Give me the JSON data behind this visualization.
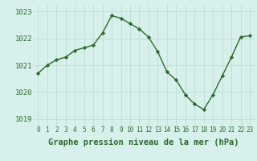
{
  "x": [
    0,
    1,
    2,
    3,
    4,
    5,
    6,
    7,
    8,
    9,
    10,
    11,
    12,
    13,
    14,
    15,
    16,
    17,
    18,
    19,
    20,
    21,
    22,
    23
  ],
  "y": [
    1020.7,
    1021.0,
    1021.2,
    1021.3,
    1021.55,
    1021.65,
    1021.75,
    1022.2,
    1022.85,
    1022.75,
    1022.55,
    1022.35,
    1022.05,
    1021.5,
    1020.75,
    1020.45,
    1019.9,
    1019.55,
    1019.35,
    1019.9,
    1020.6,
    1021.3,
    1022.05,
    1022.1
  ],
  "line_color": "#2d6a2d",
  "marker": "D",
  "marker_size": 2.2,
  "bg_color": "#d8f0ec",
  "grid_color": "#b8d8d4",
  "xlabel": "Graphe pression niveau de la mer (hPa)",
  "xlabel_fontsize": 7.5,
  "xlabel_fontweight": "bold",
  "xtick_labels": [
    "0",
    "1",
    "2",
    "3",
    "4",
    "5",
    "6",
    "7",
    "8",
    "9",
    "10",
    "11",
    "12",
    "13",
    "14",
    "15",
    "16",
    "17",
    "18",
    "19",
    "20",
    "21",
    "22",
    "23"
  ],
  "ylim": [
    1018.75,
    1023.25
  ],
  "yticks": [
    1019,
    1020,
    1021,
    1022,
    1023
  ],
  "ytick_fontsize": 6.5,
  "xtick_fontsize": 5.5,
  "line_width": 1.0
}
